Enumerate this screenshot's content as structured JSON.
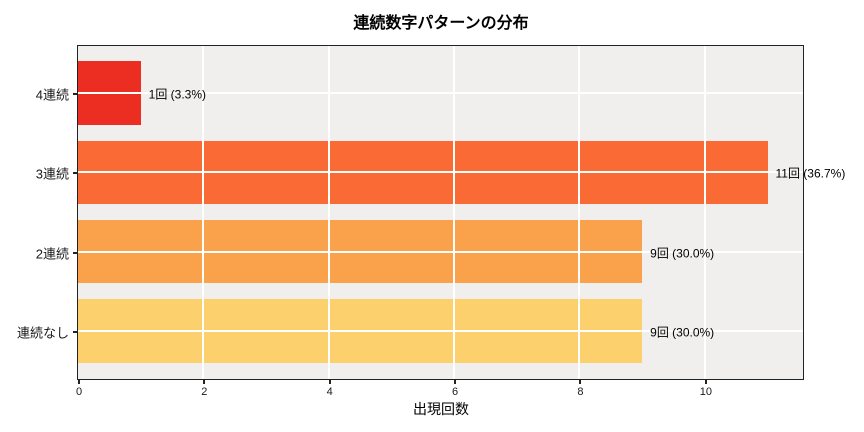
{
  "chart_data": {
    "type": "bar",
    "orientation": "horizontal",
    "title": "連続数字パターンの分布",
    "xlabel": "出現回数",
    "ylabel": "",
    "categories": [
      "4連続",
      "3連続",
      "2連続",
      "連続なし"
    ],
    "values": [
      1,
      11,
      9,
      9
    ],
    "bar_labels": [
      "1回 (3.3%)",
      "11回 (36.7%)",
      "9回 (30.0%)",
      "9回 (30.0%)"
    ],
    "bar_colors": [
      "#eb2d22",
      "#f96a34",
      "#faa14b",
      "#fdd06e"
    ],
    "xticks": [
      0,
      2,
      4,
      6,
      8,
      10
    ],
    "xlim": [
      0,
      11.55
    ],
    "grid": true,
    "legend": false,
    "plot_bg": "#f0efed",
    "grid_color": "#ffffff",
    "spine_color": "#222222",
    "tick_color": "#222222",
    "bar_height_fraction": 0.8,
    "y_margin_fraction": 0.05
  }
}
